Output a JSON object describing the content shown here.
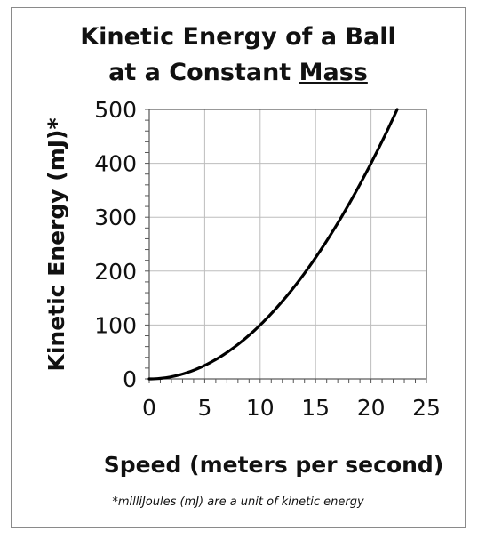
{
  "chart_data": {
    "type": "line",
    "title_line1": "Kinetic Energy of a Ball",
    "title_line2_prefix": "at a Constant ",
    "title_line2_emph": "Mass",
    "xlabel": "Speed (meters per second)",
    "ylabel": "Kinetic Energy (mJ)*",
    "xlim": [
      0,
      25
    ],
    "ylim": [
      0,
      500
    ],
    "x_ticks": [
      0,
      5,
      10,
      15,
      20,
      25
    ],
    "y_ticks": [
      0,
      100,
      200,
      300,
      400,
      500
    ],
    "grid": true,
    "footnote": "*milliJoules (mJ) are a unit of kinetic energy",
    "series": [
      {
        "x": [
          0,
          2,
          4,
          6,
          8,
          10,
          12,
          14,
          16,
          18,
          20,
          22,
          22.36
        ],
        "y": [
          0,
          4,
          16,
          36,
          64,
          100,
          144,
          196,
          256,
          324,
          400,
          484,
          500
        ]
      }
    ]
  }
}
